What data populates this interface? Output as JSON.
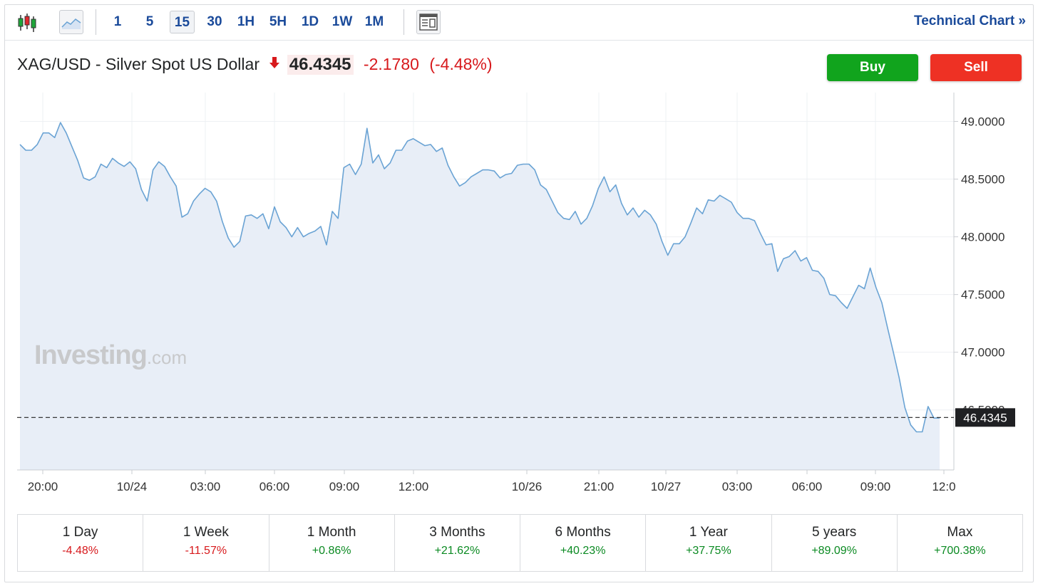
{
  "toolbar": {
    "intervals": [
      "1",
      "5",
      "15",
      "30",
      "1H",
      "5H",
      "1D",
      "1W",
      "1M"
    ],
    "active_interval": "15",
    "technical_chart_label": "Technical Chart »"
  },
  "header": {
    "instrument": "XAG/USD - Silver Spot US Dollar",
    "last": "46.4345",
    "change": "-2.1780",
    "change_pct": "(-4.48%)",
    "direction": "down",
    "buy_label": "Buy",
    "sell_label": "Sell"
  },
  "watermark": {
    "brand": "Investing",
    "suffix": ".com"
  },
  "colors": {
    "line": "#6aa3d4",
    "area": "#e8eef7",
    "negative": "#d7191c",
    "positive": "#0b8a22",
    "buy": "#11a41d",
    "sell": "#ee3124"
  },
  "chart_data": {
    "type": "area",
    "y_ticks": [
      "49.0000",
      "48.5000",
      "48.0000",
      "47.5000",
      "47.0000",
      "46.5000"
    ],
    "ylim": [
      45.98,
      49.25
    ],
    "x_tick_labels": [
      "20:00",
      "10/24",
      "03:00",
      "06:00",
      "09:00",
      "12:00",
      "10/26",
      "21:00",
      "10/27",
      "03:00",
      "06:00",
      "09:00",
      "12:0"
    ],
    "last_price": 46.4345,
    "last_price_label": "46.4345",
    "grid": true,
    "values": [
      48.8,
      48.75,
      48.75,
      48.8,
      48.9,
      48.9,
      48.86,
      48.99,
      48.9,
      48.78,
      48.66,
      48.51,
      48.49,
      48.52,
      48.63,
      48.6,
      48.68,
      48.64,
      48.61,
      48.65,
      48.59,
      48.41,
      48.31,
      48.58,
      48.65,
      48.61,
      48.52,
      48.44,
      48.17,
      48.2,
      48.31,
      48.37,
      48.42,
      48.39,
      48.31,
      48.13,
      47.99,
      47.91,
      47.96,
      48.18,
      48.19,
      48.16,
      48.2,
      48.07,
      48.26,
      48.13,
      48.08,
      48.0,
      48.08,
      48.0,
      48.03,
      48.05,
      48.09,
      47.93,
      48.22,
      48.16,
      48.6,
      48.63,
      48.54,
      48.63,
      48.94,
      48.64,
      48.71,
      48.59,
      48.64,
      48.75,
      48.75,
      48.83,
      48.85,
      48.82,
      48.79,
      48.8,
      48.74,
      48.77,
      48.62,
      48.52,
      48.44,
      48.47,
      48.52,
      48.55,
      48.58,
      48.58,
      48.57,
      48.51,
      48.54,
      48.55,
      48.62,
      48.63,
      48.63,
      48.58,
      48.45,
      48.41,
      48.31,
      48.21,
      48.16,
      48.15,
      48.22,
      48.11,
      48.16,
      48.27,
      48.42,
      48.52,
      48.39,
      48.45,
      48.29,
      48.19,
      48.25,
      48.17,
      48.23,
      48.19,
      48.11,
      47.96,
      47.84,
      47.94,
      47.94,
      48.0,
      48.12,
      48.25,
      48.2,
      48.32,
      48.31,
      48.36,
      48.33,
      48.3,
      48.21,
      48.16,
      48.16,
      48.14,
      48.03,
      47.93,
      47.94,
      47.7,
      47.81,
      47.83,
      47.88,
      47.79,
      47.82,
      47.71,
      47.7,
      47.64,
      47.5,
      47.49,
      47.43,
      47.38,
      47.48,
      47.58,
      47.55,
      47.73,
      47.56,
      47.43,
      47.21,
      47.0,
      46.78,
      46.52,
      46.37,
      46.31,
      46.31,
      46.53,
      46.43,
      46.43
    ]
  },
  "periods": [
    {
      "label": "1 Day",
      "value": "-4.48%",
      "sign": "neg"
    },
    {
      "label": "1 Week",
      "value": "-11.57%",
      "sign": "neg"
    },
    {
      "label": "1 Month",
      "value": "+0.86%",
      "sign": "pos"
    },
    {
      "label": "3 Months",
      "value": "+21.62%",
      "sign": "pos"
    },
    {
      "label": "6 Months",
      "value": "+40.23%",
      "sign": "pos"
    },
    {
      "label": "1 Year",
      "value": "+37.75%",
      "sign": "pos"
    },
    {
      "label": "5 years",
      "value": "+89.09%",
      "sign": "pos"
    },
    {
      "label": "Max",
      "value": "+700.38%",
      "sign": "pos"
    }
  ]
}
